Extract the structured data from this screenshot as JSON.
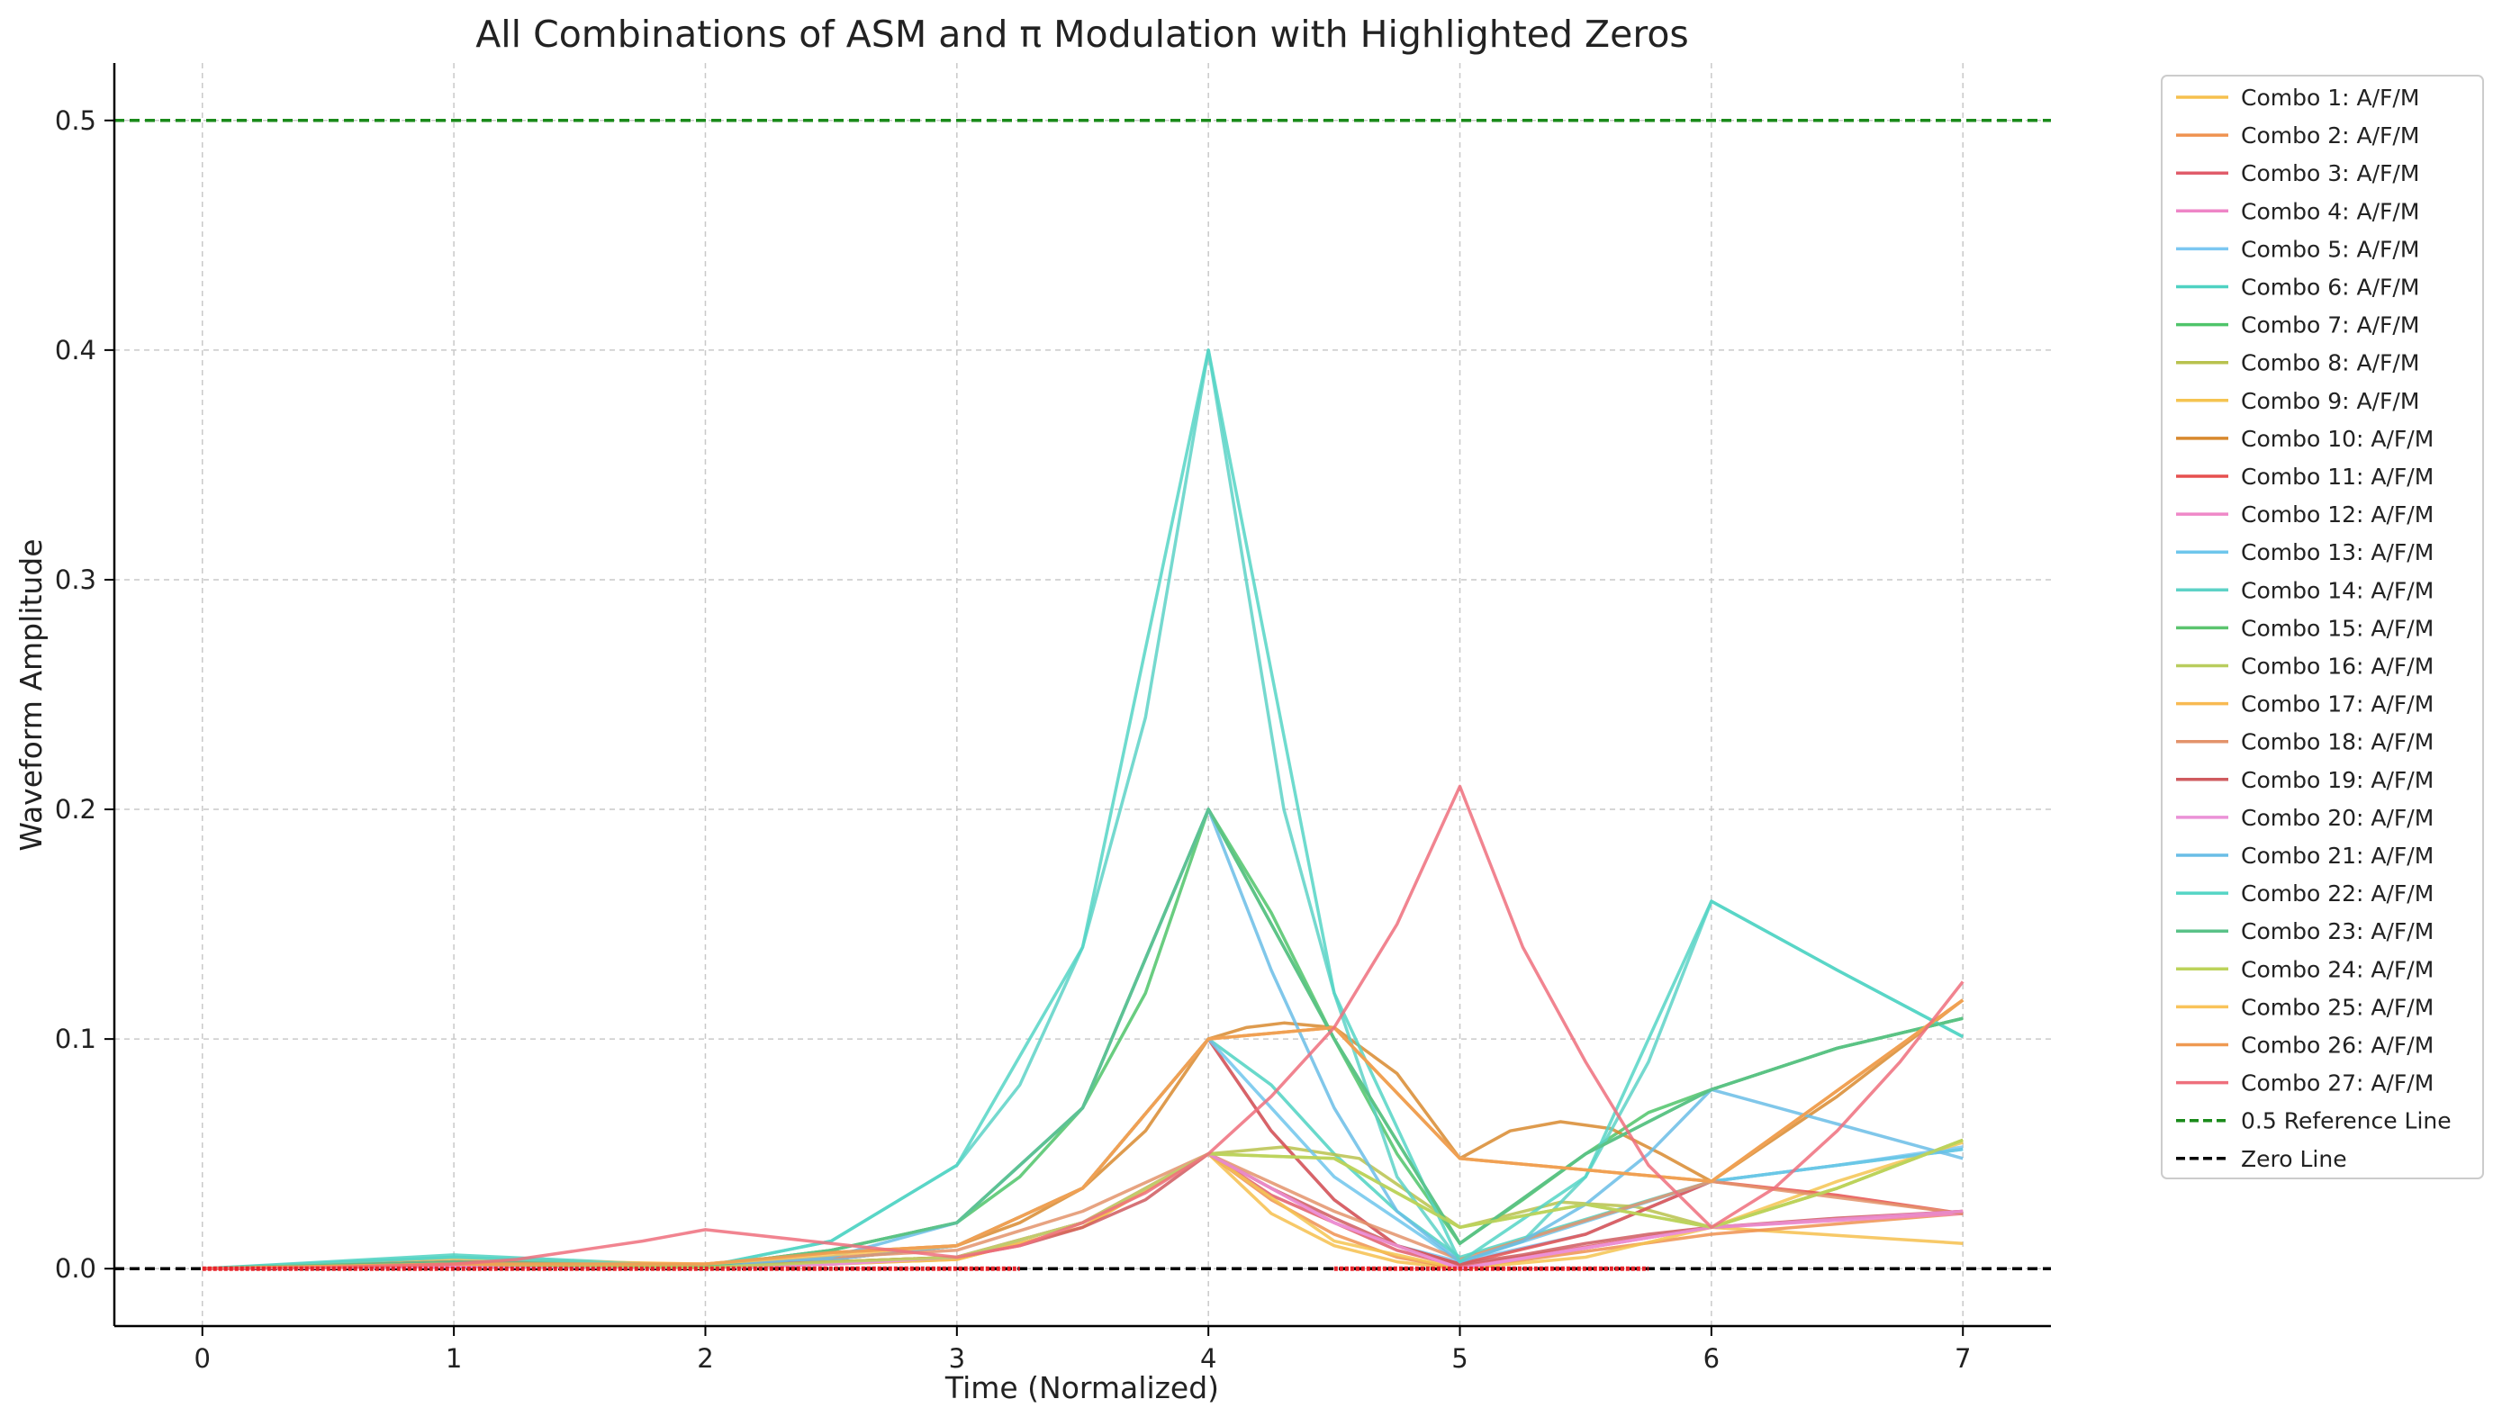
{
  "chart_data": {
    "type": "line",
    "title": "All Combinations of ASM and π Modulation with Highlighted Zeros",
    "xlabel": "Time (Normalized)",
    "ylabel": "Waveform Amplitude",
    "xlim": [
      -0.35,
      7.35
    ],
    "ylim": [
      -0.025,
      0.525
    ],
    "xticks": [
      0,
      1,
      2,
      3,
      4,
      5,
      6,
      7
    ],
    "yticks": [
      0.0,
      0.1,
      0.2,
      0.3,
      0.4,
      0.5
    ],
    "ytick_labels": [
      "0.0",
      "0.1",
      "0.2",
      "0.3",
      "0.4",
      "0.5"
    ],
    "grid": true,
    "legend_position": "outside-right",
    "series": [
      {
        "name": "Combo 1: A/F/M",
        "color": "#f6c04e",
        "x": [
          0,
          1,
          2,
          2.5,
          3,
          3.5,
          4,
          4.25,
          4.5,
          4.75,
          5,
          6,
          7
        ],
        "y": [
          0,
          0.0015,
          0.0005,
          0.003,
          0.005,
          0.02,
          0.05,
          0.024,
          0.01,
          0.003,
          0.0,
          0.018,
          0.011
        ]
      },
      {
        "name": "Combo 2: A/F/M",
        "color": "#ef9250",
        "x": [
          0,
          1,
          2,
          2.5,
          3,
          3.5,
          4,
          4.25,
          4.5,
          4.75,
          5,
          6,
          7
        ],
        "y": [
          0,
          0.001,
          0.0005,
          0.002,
          0.004,
          0.018,
          0.05,
          0.03,
          0.015,
          0.005,
          0.0,
          0.015,
          0.024
        ]
      },
      {
        "name": "Combo 3: A/F/M",
        "color": "#e05c6a",
        "x": [
          0,
          1,
          2,
          2.5,
          3,
          3.5,
          4,
          4.25,
          4.5,
          4.75,
          5,
          6,
          7
        ],
        "y": [
          0,
          0.001,
          0.0005,
          0.002,
          0.005,
          0.02,
          0.05,
          0.032,
          0.02,
          0.008,
          0.001,
          0.018,
          0.025
        ]
      },
      {
        "name": "Combo 4: A/F/M",
        "color": "#ee85c7",
        "x": [
          0,
          1,
          2,
          2.5,
          3,
          3.5,
          4,
          4.5,
          5,
          6,
          7
        ],
        "y": [
          0,
          0.001,
          0.0005,
          0.002,
          0.005,
          0.02,
          0.05,
          0.02,
          0.0,
          0.018,
          0.024
        ]
      },
      {
        "name": "Combo 5: A/F/M",
        "color": "#7cc7f2",
        "x": [
          0,
          1,
          2,
          2.5,
          3,
          3.5,
          4,
          4.25,
          4.5,
          4.75,
          5,
          5.5,
          6,
          6.5,
          7
        ],
        "y": [
          0,
          0.002,
          0.0005,
          0.004,
          0.01,
          0.035,
          0.1,
          0.06,
          0.03,
          0.01,
          0.003,
          0.015,
          0.038,
          0.045,
          0.053
        ]
      },
      {
        "name": "Combo 6: A/F/M",
        "color": "#4fd2c2",
        "x": [
          0,
          1,
          2,
          2.5,
          3,
          3.5,
          4,
          4.25,
          4.5,
          4.75,
          5,
          6,
          7
        ],
        "y": [
          0,
          0.006,
          0.001,
          0.004,
          0.01,
          0.035,
          0.1,
          0.08,
          0.05,
          0.025,
          0.005,
          0.038,
          0.052
        ]
      },
      {
        "name": "Combo 7: A/F/M",
        "color": "#4fc46a",
        "x": [
          0,
          1,
          2,
          2.5,
          3,
          3.25,
          3.5,
          3.75,
          4,
          4.25,
          4.5,
          4.75,
          5,
          5.25,
          5.5,
          5.75,
          6,
          6.5,
          7
        ],
        "y": [
          0,
          0.003,
          0.001,
          0.008,
          0.02,
          0.04,
          0.07,
          0.12,
          0.2,
          0.155,
          0.1,
          0.05,
          0.011,
          0.03,
          0.05,
          0.068,
          0.078,
          0.096,
          0.109
        ]
      },
      {
        "name": "Combo 8: A/F/M",
        "color": "#b8c24e",
        "x": [
          0,
          1,
          2,
          2.5,
          3,
          3.5,
          4,
          4.3,
          4.6,
          5,
          5.4,
          5.7,
          6,
          6.5,
          7
        ],
        "y": [
          0,
          0.002,
          0.0005,
          0.003,
          0.005,
          0.02,
          0.05,
          0.053,
          0.048,
          0.018,
          0.029,
          0.027,
          0.018,
          0.035,
          0.056
        ]
      },
      {
        "name": "Combo 9: A/F/M",
        "color": "#f5c451",
        "x": [
          0,
          1,
          2,
          2.5,
          3,
          3.5,
          4,
          4.5,
          5,
          5.5,
          6,
          6.5,
          7
        ],
        "y": [
          0,
          0.001,
          0.0005,
          0.002,
          0.004,
          0.018,
          0.05,
          0.012,
          0.0,
          0.005,
          0.018,
          0.038,
          0.055
        ]
      },
      {
        "name": "Combo 10: A/F/M",
        "color": "#d8892f",
        "x": [
          0,
          1,
          2,
          2.5,
          3,
          3.25,
          3.5,
          3.75,
          4,
          4.15,
          4.3,
          4.5,
          4.75,
          5,
          5.2,
          5.4,
          5.6,
          5.8,
          6,
          6.5,
          7
        ],
        "y": [
          0,
          0.002,
          0.002,
          0.007,
          0.01,
          0.02,
          0.035,
          0.06,
          0.1,
          0.105,
          0.107,
          0.105,
          0.085,
          0.048,
          0.06,
          0.064,
          0.061,
          0.05,
          0.038,
          0.075,
          0.117
        ]
      },
      {
        "name": "Combo 11: A/F/M",
        "color": "#e6504f",
        "x": [
          0,
          1,
          2,
          2.5,
          3,
          3.5,
          4,
          4.25,
          4.5,
          4.75,
          5,
          5.5,
          6,
          6.5,
          7
        ],
        "y": [
          0,
          0.002,
          0.0005,
          0.004,
          0.01,
          0.035,
          0.1,
          0.06,
          0.03,
          0.01,
          0.002,
          0.015,
          0.038,
          0.032,
          0.024
        ]
      },
      {
        "name": "Combo 12: A/F/M",
        "color": "#ef88c8",
        "x": [
          0,
          1,
          2,
          2.5,
          3,
          3.5,
          4,
          4.5,
          5,
          6,
          7
        ],
        "y": [
          0,
          0.001,
          0.0005,
          0.002,
          0.005,
          0.02,
          0.05,
          0.02,
          0.0,
          0.018,
          0.025
        ]
      },
      {
        "name": "Combo 13: A/F/M",
        "color": "#6ec6ec",
        "x": [
          0,
          1,
          2,
          2.5,
          3,
          3.5,
          4,
          4.5,
          5,
          6,
          7
        ],
        "y": [
          0,
          0.002,
          0.001,
          0.004,
          0.01,
          0.035,
          0.1,
          0.04,
          0.003,
          0.038,
          0.052
        ]
      },
      {
        "name": "Combo 14: A/F/M",
        "color": "#5dd2c7",
        "x": [
          0,
          1,
          1.5,
          2,
          2.5,
          3,
          3.25,
          3.5,
          3.75,
          4,
          4.15,
          4.3,
          4.5,
          4.75,
          5,
          5.25,
          5.5,
          5.75,
          6,
          6.5,
          7
        ],
        "y": [
          0,
          0.005,
          0.003,
          0.001,
          0.012,
          0.045,
          0.08,
          0.14,
          0.24,
          0.4,
          0.3,
          0.2,
          0.12,
          0.04,
          0.003,
          0.012,
          0.04,
          0.09,
          0.16,
          0.13,
          0.101
        ]
      },
      {
        "name": "Combo 15: A/F/M",
        "color": "#5cc46f",
        "x": [
          0,
          1,
          2,
          2.5,
          3,
          3.5,
          4,
          4.5,
          5,
          5.5,
          6,
          6.5,
          7
        ],
        "y": [
          0,
          0.003,
          0.001,
          0.008,
          0.02,
          0.07,
          0.2,
          0.1,
          0.011,
          0.05,
          0.078,
          0.096,
          0.109
        ]
      },
      {
        "name": "Combo 16: A/F/M",
        "color": "#b9cd5e",
        "x": [
          0,
          1,
          2,
          2.5,
          3,
          3.5,
          4,
          4.5,
          5,
          5.5,
          6,
          6.5,
          7
        ],
        "y": [
          0,
          0.002,
          0.0005,
          0.003,
          0.005,
          0.02,
          0.05,
          0.048,
          0.018,
          0.028,
          0.018,
          0.035,
          0.056
        ]
      },
      {
        "name": "Combo 17: A/F/M",
        "color": "#f8ba52",
        "x": [
          0,
          1,
          2,
          2.5,
          3,
          3.5,
          4,
          4.5,
          5,
          6,
          7
        ],
        "y": [
          0,
          0.004,
          0.002,
          0.007,
          0.01,
          0.035,
          0.1,
          0.105,
          0.048,
          0.038,
          0.117
        ]
      },
      {
        "name": "Combo 18: A/F/M",
        "color": "#e3936b",
        "x": [
          0,
          1,
          2,
          2.5,
          3,
          3.5,
          4,
          4.5,
          5,
          6,
          7
        ],
        "y": [
          0,
          0.003,
          0.0015,
          0.005,
          0.008,
          0.025,
          0.05,
          0.025,
          0.004,
          0.038,
          0.024
        ]
      },
      {
        "name": "Combo 19: A/F/M",
        "color": "#cf5b5f",
        "x": [
          0,
          1,
          2,
          2.5,
          3,
          3.25,
          3.5,
          3.75,
          4,
          4.25,
          4.5,
          4.75,
          5,
          5.25,
          5.5,
          5.75,
          6,
          6.5,
          7
        ],
        "y": [
          0,
          0.003,
          0.001,
          0.003,
          0.005,
          0.01,
          0.018,
          0.03,
          0.05,
          0.035,
          0.022,
          0.01,
          0.002,
          0.006,
          0.011,
          0.015,
          0.018,
          0.022,
          0.025
        ]
      },
      {
        "name": "Combo 20: A/F/M",
        "color": "#eb92d7",
        "x": [
          0,
          1,
          2,
          2.5,
          3,
          3.5,
          4,
          4.5,
          5,
          6,
          7
        ],
        "y": [
          0,
          0.001,
          0.0005,
          0.002,
          0.005,
          0.02,
          0.05,
          0.02,
          0.0,
          0.018,
          0.025
        ]
      },
      {
        "name": "Combo 21: A/F/M",
        "color": "#6abde6",
        "x": [
          0,
          1,
          2,
          2.5,
          3,
          3.5,
          4,
          4.25,
          4.5,
          4.75,
          5,
          5.25,
          5.5,
          5.75,
          6,
          6.5,
          7
        ],
        "y": [
          0,
          0.002,
          0.001,
          0.005,
          0.02,
          0.07,
          0.2,
          0.13,
          0.07,
          0.025,
          0.003,
          0.012,
          0.028,
          0.05,
          0.078,
          0.063,
          0.048
        ]
      },
      {
        "name": "Combo 22: A/F/M",
        "color": "#55d5c5",
        "x": [
          0,
          1,
          2,
          2.5,
          3,
          3.5,
          4,
          4.5,
          5,
          5.5,
          6,
          6.5,
          7
        ],
        "y": [
          0,
          0.005,
          0.001,
          0.012,
          0.045,
          0.14,
          0.4,
          0.12,
          0.003,
          0.04,
          0.16,
          0.13,
          0.101
        ]
      },
      {
        "name": "Combo 23: A/F/M",
        "color": "#5ac288",
        "x": [
          0,
          1,
          2,
          2.5,
          3,
          3.5,
          4,
          4.5,
          5,
          5.5,
          6,
          6.5,
          7
        ],
        "y": [
          0,
          0.003,
          0.001,
          0.008,
          0.02,
          0.07,
          0.2,
          0.1,
          0.011,
          0.05,
          0.078,
          0.096,
          0.109
        ]
      },
      {
        "name": "Combo 24: A/F/M",
        "color": "#bcd35a",
        "x": [
          0,
          1,
          2,
          2.5,
          3,
          3.5,
          4,
          4.5,
          5,
          5.5,
          6,
          6.5,
          7
        ],
        "y": [
          0,
          0.002,
          0.0005,
          0.003,
          0.005,
          0.02,
          0.05,
          0.048,
          0.018,
          0.028,
          0.018,
          0.035,
          0.056
        ]
      },
      {
        "name": "Combo 25: A/F/M",
        "color": "#f9c35a",
        "x": [
          0,
          1,
          2,
          2.5,
          3,
          3.5,
          4,
          4.5,
          5,
          6,
          7
        ],
        "y": [
          0,
          0.002,
          0.002,
          0.006,
          0.01,
          0.035,
          0.1,
          0.105,
          0.048,
          0.038,
          0.117
        ]
      },
      {
        "name": "Combo 26: A/F/M",
        "color": "#ef9a52",
        "x": [
          0,
          1,
          2,
          2.5,
          3,
          3.5,
          4,
          4.5,
          5,
          6,
          7
        ],
        "y": [
          0,
          0.002,
          0.002,
          0.007,
          0.01,
          0.035,
          0.1,
          0.105,
          0.048,
          0.038,
          0.117
        ]
      },
      {
        "name": "Combo 27: A/F/M",
        "color": "#ee6f7c",
        "x": [
          0,
          0.5,
          1,
          1.25,
          1.5,
          1.75,
          2,
          2.5,
          3,
          3.25,
          3.5,
          3.75,
          4,
          4.25,
          4.5,
          4.75,
          5,
          5.25,
          5.5,
          5.75,
          6,
          6.25,
          6.5,
          6.75,
          7
        ],
        "y": [
          0,
          0.0005,
          0.002,
          0.004,
          0.008,
          0.012,
          0.017,
          0.011,
          0.005,
          0.01,
          0.02,
          0.033,
          0.05,
          0.075,
          0.105,
          0.15,
          0.21,
          0.14,
          0.09,
          0.045,
          0.018,
          0.035,
          0.06,
          0.09,
          0.125
        ]
      }
    ],
    "reference_lines": [
      {
        "name": "0.5 Reference Line",
        "y": 0.5,
        "color": "#1a8a1a",
        "style": "dashed"
      },
      {
        "name": "Zero Line",
        "y": 0.0,
        "color": "#000000",
        "style": "dashed"
      }
    ],
    "highlighted_zero_ranges": [
      {
        "x_start": 0.0,
        "x_end": 3.25,
        "color": "#e8242b"
      },
      {
        "x_start": 4.5,
        "x_end": 5.75,
        "color": "#e8242b"
      }
    ]
  }
}
